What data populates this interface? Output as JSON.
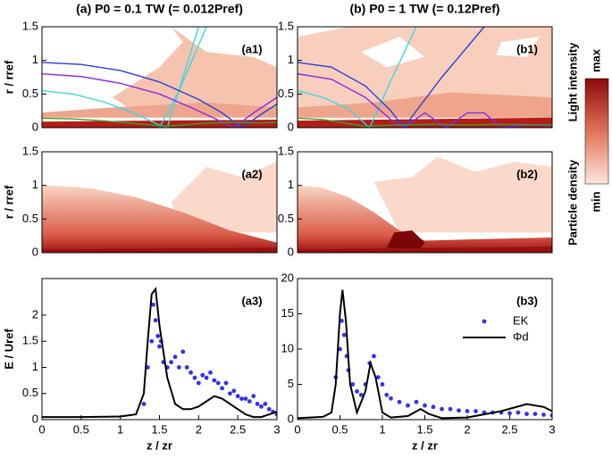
{
  "chart_data": [
    {
      "type": "contour",
      "column_title": "(a) P0 = 0.1 TW (= 0.012Pref)",
      "panel_label": "(a1)",
      "ylabel": "r / rref",
      "xlim": [
        0,
        3
      ],
      "ylim": [
        0,
        1.5
      ],
      "yticks": [
        0,
        0.5,
        1,
        1.5
      ],
      "series": [
        {
          "color": "#3fd6e2",
          "x": [
            0,
            0.4,
            0.8,
            1.2,
            1.5,
            1.6,
            1.8,
            2.0
          ],
          "values": [
            0.55,
            0.5,
            0.38,
            0.2,
            0.04,
            0,
            0.75,
            1.5
          ]
        },
        {
          "color": "#3fd6e2",
          "x": [
            1.5,
            1.75,
            2.1
          ],
          "values": [
            0,
            0.55,
            1.5
          ]
        },
        {
          "color": "#2a3fd8",
          "x": [
            0,
            0.5,
            1.0,
            1.5,
            2.0,
            2.3,
            2.55,
            2.8,
            3.0
          ],
          "values": [
            0.97,
            0.94,
            0.85,
            0.68,
            0.42,
            0.22,
            0,
            0.2,
            0.35
          ]
        },
        {
          "color": "#8a2be2",
          "x": [
            0,
            0.5,
            1.0,
            1.5,
            1.9,
            2.2,
            2.45,
            2.7,
            3.0
          ],
          "values": [
            0.8,
            0.76,
            0.66,
            0.5,
            0.3,
            0.14,
            0,
            0.22,
            0.45
          ]
        },
        {
          "color": "#3aa02a",
          "x": [
            0,
            0.4,
            0.8,
            1.2,
            1.6,
            2.0,
            2.4,
            2.8,
            3.0
          ],
          "values": [
            0.14,
            0.13,
            0.1,
            0.06,
            0.02,
            0.06,
            0.08,
            0.07,
            0.08
          ]
        }
      ]
    },
    {
      "type": "contour",
      "column_title": "(b) P0 = 1 TW (= 0.12Pref)",
      "panel_label": "(b1)",
      "ylabel": "",
      "xlim": [
        0,
        3
      ],
      "ylim": [
        0,
        1.5
      ],
      "yticks": [
        0,
        0.5,
        1,
        1.5
      ],
      "series": [
        {
          "color": "#3fd6e2",
          "x": [
            0,
            0.3,
            0.6,
            0.85,
            1.1,
            1.4
          ],
          "values": [
            0.55,
            0.45,
            0.28,
            0,
            0.7,
            1.5
          ]
        },
        {
          "color": "#2a3fd8",
          "x": [
            0,
            0.4,
            0.8,
            1.1,
            1.25,
            1.7,
            2.2
          ],
          "values": [
            0.97,
            0.9,
            0.62,
            0.25,
            0,
            0.75,
            1.5
          ]
        },
        {
          "color": "#8a2be2",
          "x": [
            0,
            0.4,
            0.8,
            1.1,
            1.25,
            1.5,
            1.75,
            2.0,
            2.2,
            2.4,
            2.7,
            3.0
          ],
          "values": [
            0.8,
            0.72,
            0.45,
            0.12,
            0,
            0.22,
            0,
            0.22,
            0.22,
            0,
            0.04,
            0.03
          ]
        },
        {
          "color": "#3aa02a",
          "x": [
            0,
            0.3,
            0.6,
            0.8,
            1.2,
            1.6,
            2.0,
            2.4,
            3.0
          ],
          "values": [
            0.14,
            0.12,
            0.06,
            0.02,
            0.04,
            0.05,
            0.04,
            0.05,
            0.04
          ]
        }
      ]
    },
    {
      "type": "heatmap",
      "panel_label": "(a2)",
      "ylabel": "r / rref",
      "xlim": [
        0,
        3
      ],
      "ylim": [
        0,
        1.5
      ],
      "yticks": [
        0,
        0.5,
        1,
        1.5
      ]
    },
    {
      "type": "heatmap",
      "panel_label": "(b2)",
      "ylabel": "",
      "xlim": [
        0,
        3
      ],
      "ylim": [
        0,
        1.5
      ],
      "yticks": [
        0,
        0.5,
        1,
        1.5
      ]
    },
    {
      "type": "scatter",
      "panel_label": "(a3)",
      "ylabel": "E / Uref",
      "xlabel": "z / zr",
      "xlim": [
        0,
        3
      ],
      "xticks": [
        0,
        0.5,
        1,
        1.5,
        2,
        2.5,
        3
      ],
      "ylim": [
        0,
        2.7
      ],
      "yticks": [
        0,
        0.5,
        1,
        1.5,
        2
      ],
      "series": [
        {
          "name": "EK",
          "type": "scatter",
          "color": "#3333e6",
          "x": [
            1.3,
            1.35,
            1.4,
            1.42,
            1.45,
            1.48,
            1.5,
            1.52,
            1.55,
            1.6,
            1.65,
            1.7,
            1.75,
            1.8,
            1.85,
            1.9,
            1.95,
            2.0,
            2.05,
            2.1,
            2.15,
            2.2,
            2.25,
            2.3,
            2.35,
            2.4,
            2.45,
            2.5,
            2.55,
            2.6,
            2.65,
            2.7,
            2.75,
            2.8,
            2.85,
            2.9,
            2.95,
            3.0
          ],
          "values": [
            0.3,
            1.0,
            1.5,
            2.2,
            1.9,
            1.6,
            1.4,
            1.5,
            1.1,
            1.0,
            1.1,
            1.2,
            1.0,
            1.3,
            1.0,
            0.9,
            0.8,
            0.7,
            0.85,
            0.8,
            0.9,
            0.75,
            0.7,
            0.6,
            0.7,
            0.5,
            0.55,
            0.45,
            0.4,
            0.4,
            0.35,
            0.45,
            0.3,
            0.25,
            0.3,
            0.2,
            0.15,
            0.1
          ]
        },
        {
          "name": "Φd",
          "type": "line",
          "color": "#000000",
          "x": [
            0,
            0.5,
            1.0,
            1.2,
            1.3,
            1.35,
            1.4,
            1.45,
            1.5,
            1.6,
            1.7,
            1.8,
            1.9,
            2.0,
            2.1,
            2.2,
            2.3,
            2.4,
            2.5,
            2.6,
            2.7,
            2.8,
            2.9,
            3.0
          ],
          "values": [
            0.05,
            0.05,
            0.06,
            0.1,
            0.5,
            1.5,
            2.4,
            2.5,
            1.8,
            0.8,
            0.3,
            0.2,
            0.2,
            0.25,
            0.35,
            0.45,
            0.4,
            0.3,
            0.2,
            0.1,
            0.05,
            0.05,
            0.1,
            0.15
          ]
        }
      ]
    },
    {
      "type": "scatter",
      "panel_label": "(b3)",
      "ylabel": "",
      "xlabel": "z / zr",
      "legend": "upper right",
      "xlim": [
        0,
        3
      ],
      "xticks": [
        0,
        0.5,
        1,
        1.5,
        2,
        2.5,
        3
      ],
      "ylim": [
        0,
        20
      ],
      "yticks": [
        0,
        5,
        10,
        15,
        20
      ],
      "series": [
        {
          "name": "EK",
          "type": "scatter",
          "color": "#3333e6",
          "x": [
            0.45,
            0.5,
            0.52,
            0.55,
            0.58,
            0.6,
            0.65,
            0.7,
            0.75,
            0.8,
            0.85,
            0.9,
            0.95,
            1.0,
            1.05,
            1.1,
            1.2,
            1.3,
            1.4,
            1.5,
            1.6,
            1.7,
            1.8,
            1.9,
            2.0,
            2.1,
            2.2,
            2.3,
            2.4,
            2.5,
            2.6,
            2.7,
            2.8,
            2.9,
            3.0
          ],
          "values": [
            6,
            10,
            14,
            12,
            9,
            7,
            5,
            4,
            3.5,
            5,
            8,
            9,
            6,
            5,
            3.5,
            3,
            2.5,
            2,
            2.5,
            2,
            1.8,
            1.5,
            1.5,
            1.3,
            1.2,
            1.2,
            1.0,
            1.0,
            1.0,
            0.9,
            1.0,
            0.8,
            0.8,
            0.7,
            0.6
          ]
        },
        {
          "name": "Φd",
          "type": "line",
          "color": "#000000",
          "x": [
            0,
            0.3,
            0.4,
            0.45,
            0.5,
            0.53,
            0.57,
            0.62,
            0.7,
            0.8,
            0.86,
            0.92,
            1.0,
            1.1,
            1.3,
            1.45,
            1.55,
            1.7,
            2.0,
            2.4,
            2.7,
            2.9,
            3.0
          ],
          "values": [
            0.2,
            0.4,
            1,
            5,
            15,
            18.4,
            14,
            5,
            1,
            4,
            8,
            6,
            1,
            0.3,
            0.5,
            1.5,
            0.8,
            0.2,
            0.3,
            1.2,
            2.2,
            1.8,
            1.2
          ]
        }
      ]
    }
  ],
  "colorbar": {
    "max": "max",
    "min": "min",
    "labels": [
      "Light intensity",
      "Particle density"
    ]
  }
}
